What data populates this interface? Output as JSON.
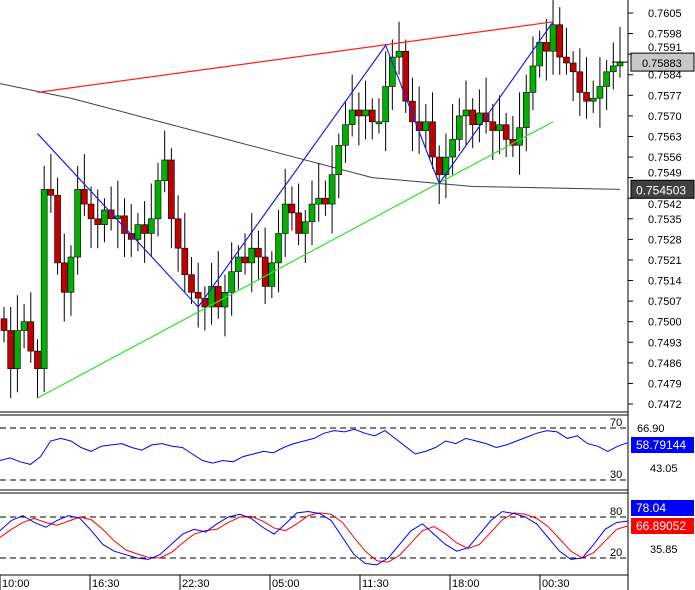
{
  "chart_data": {
    "type": "candlestick",
    "instrument_panel": {
      "ylim": [
        0.7466,
        0.761
      ],
      "price_ticks": [
        "0.7605",
        "0.7598",
        "0.7591",
        "0.7584",
        "0.7577",
        "0.7570",
        "0.7563",
        "0.7556",
        "0.7549",
        "0.7542",
        "0.7535",
        "0.7528",
        "0.7521",
        "0.7514",
        "0.7507",
        "0.7500",
        "0.7493",
        "0.7486",
        "0.7479",
        "0.7472"
      ],
      "current_price_label": "0.75883",
      "ma_label": "0.754503",
      "closes": [
        0.7497,
        0.7484,
        0.7497,
        0.75,
        0.749,
        0.7484,
        0.7545,
        0.7543,
        0.752,
        0.751,
        0.7522,
        0.7545,
        0.754,
        0.7535,
        0.7533,
        0.7538,
        0.7535,
        0.7536,
        0.753,
        0.7528,
        0.7533,
        0.753,
        0.7535,
        0.7548,
        0.7555,
        0.7535,
        0.7525,
        0.7516,
        0.751,
        0.7508,
        0.7505,
        0.7512,
        0.7505,
        0.751,
        0.7517,
        0.7522,
        0.752,
        0.7525,
        0.7522,
        0.7512,
        0.752,
        0.753,
        0.754,
        0.7537,
        0.753,
        0.7534,
        0.754,
        0.7542,
        0.754,
        0.755,
        0.756,
        0.7567,
        0.7572,
        0.757,
        0.7572,
        0.7568,
        0.7568,
        0.758,
        0.759,
        0.7592,
        0.7575,
        0.7568,
        0.7565,
        0.7568,
        0.7556,
        0.755,
        0.7556,
        0.7562,
        0.757,
        0.7572,
        0.7567,
        0.7571,
        0.7568,
        0.7565,
        0.7567,
        0.7562,
        0.756,
        0.7566,
        0.7578,
        0.7587,
        0.7595,
        0.7592,
        0.7601,
        0.759,
        0.7588,
        0.7585,
        0.7578,
        0.7575,
        0.7576,
        0.758,
        0.7585,
        0.7587,
        0.75883
      ],
      "ma": [
        [
          0,
          0.7581
        ],
        [
          10,
          0.7576
        ],
        [
          25,
          0.7567
        ],
        [
          40,
          0.7558
        ],
        [
          55,
          0.7549
        ],
        [
          70,
          0.7546
        ],
        [
          92,
          0.7545
        ]
      ],
      "red_trendline": [
        [
          5,
          0.7578
        ],
        [
          82,
          0.7602
        ]
      ],
      "blue_zigzag": [
        [
          5,
          0.7564
        ],
        [
          29,
          0.7505
        ],
        [
          57,
          0.7594
        ],
        [
          65,
          0.7547
        ],
        [
          82,
          0.7602
        ]
      ],
      "green_trendline": [
        [
          5,
          0.7474
        ],
        [
          82,
          0.7568
        ]
      ],
      "colors": {
        "bull": "#00b000",
        "bear": "#c00000",
        "red_line": "#ff2020",
        "blue_line": "#2020e0",
        "green_line": "#30e030",
        "ma": "#404040"
      }
    },
    "rsi_panel": {
      "levels": [
        "70",
        "30"
      ],
      "ylim": [
        18,
        82
      ],
      "right_labels": [
        "66.90",
        "43.05"
      ],
      "current_label": "58.79144",
      "values": [
        45,
        47,
        44,
        42,
        48,
        60,
        62,
        60,
        55,
        52,
        56,
        57,
        58,
        55,
        53,
        57,
        58,
        56,
        55,
        50,
        45,
        43,
        45,
        44,
        48,
        50,
        52,
        51,
        55,
        58,
        60,
        62,
        66,
        68,
        67,
        69,
        66,
        64,
        68,
        62,
        56,
        50,
        52,
        55,
        60,
        58,
        62,
        60,
        58,
        55,
        57,
        60,
        63,
        66,
        68,
        67,
        62,
        64,
        58,
        56,
        52,
        56,
        58.79
      ]
    },
    "stoch_panel": {
      "levels": [
        "80",
        "20"
      ],
      "ylim": [
        0,
        100
      ],
      "right_labels": [
        "35.85"
      ],
      "current_labels": [
        "78.04",
        "66.89052"
      ],
      "k": [
        60,
        75,
        82,
        72,
        65,
        75,
        82,
        78,
        60,
        40,
        30,
        25,
        20,
        18,
        25,
        40,
        55,
        62,
        58,
        70,
        80,
        84,
        78,
        65,
        55,
        70,
        86,
        88,
        85,
        75,
        50,
        25,
        12,
        10,
        20,
        40,
        60,
        70,
        55,
        40,
        30,
        35,
        55,
        75,
        88,
        85,
        80,
        70,
        50,
        30,
        18,
        20,
        40,
        62,
        72,
        74
      ],
      "d": [
        50,
        62,
        72,
        78,
        72,
        68,
        74,
        80,
        76,
        62,
        45,
        32,
        26,
        21,
        20,
        28,
        42,
        55,
        60,
        62,
        72,
        80,
        81,
        74,
        64,
        60,
        70,
        82,
        86,
        84,
        72,
        50,
        30,
        16,
        14,
        24,
        42,
        60,
        66,
        56,
        42,
        34,
        40,
        58,
        76,
        86,
        84,
        78,
        66,
        48,
        30,
        20,
        28,
        45,
        62,
        67
      ]
    },
    "x_tick_labels": [
      "10:00",
      "16:30",
      "22:30",
      "05:00",
      "11:30",
      "18:00",
      "00:30"
    ]
  }
}
